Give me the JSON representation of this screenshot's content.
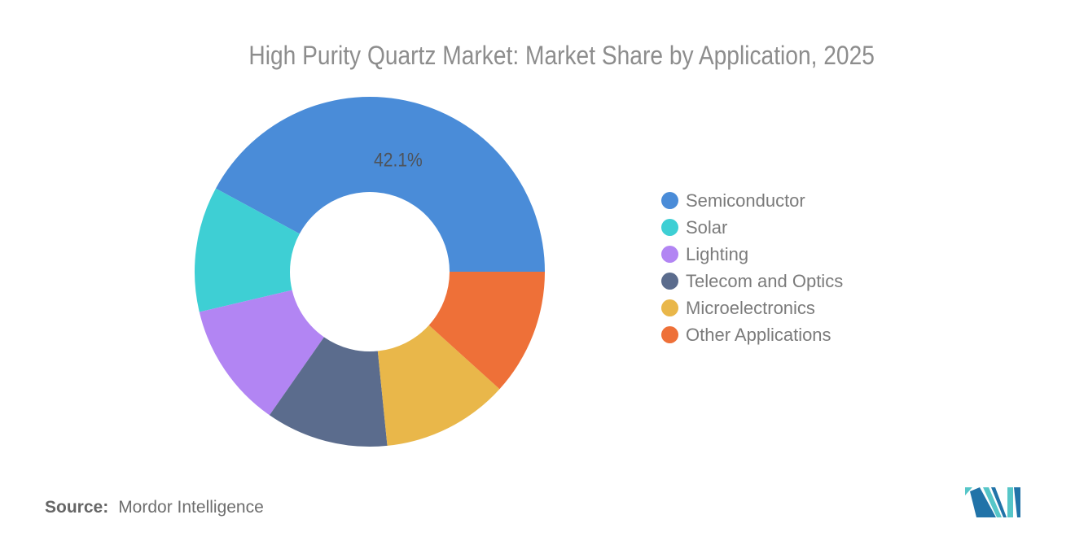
{
  "title": "High Purity Quartz Market: Market Share by Application, 2025",
  "source": {
    "label": "Source:",
    "value": "Mordor Intelligence"
  },
  "logo": {
    "name": "mordor-intelligence-logo",
    "colors": {
      "navy": "#2173A8",
      "teal": "#56C6C8"
    }
  },
  "text_colors": {
    "title": "#8D8D8D",
    "legend": "#7B7B7B",
    "slice_label": "#4E535A",
    "source": "#6E6E6E"
  },
  "chart_data": {
    "type": "pie",
    "subtype": "donut",
    "title": "High Purity Quartz Market: Market Share by Application, 2025",
    "unit": "%",
    "start_angle_deg": 0,
    "direction": "counterclockwise",
    "inner_radius_ratio": 0.455,
    "legend_position": "right",
    "grid": false,
    "slices": [
      {
        "name": "Semiconductor",
        "value": 42.1,
        "label": "42.1%",
        "color": "#4A8CD8"
      },
      {
        "name": "Solar",
        "value": 11.6,
        "label": null,
        "color": "#3ECFD4"
      },
      {
        "name": "Lighting",
        "value": 11.6,
        "label": null,
        "color": "#B285F3"
      },
      {
        "name": "Telecom and Optics",
        "value": 11.3,
        "label": null,
        "color": "#5B6C8D"
      },
      {
        "name": "Microelectronics",
        "value": 11.7,
        "label": null,
        "color": "#E9B74A"
      },
      {
        "name": "Other Applications",
        "value": 11.7,
        "label": null,
        "color": "#EE7038"
      }
    ]
  }
}
